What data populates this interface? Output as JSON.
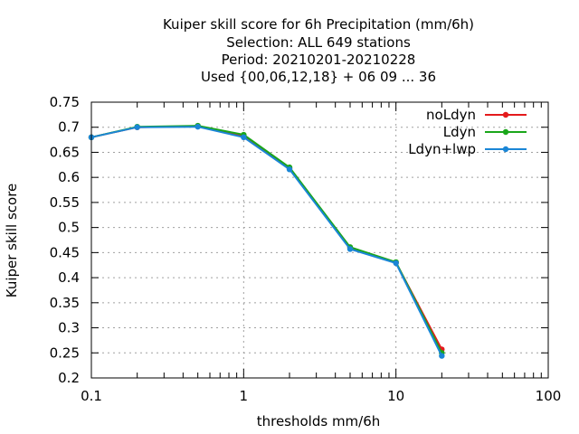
{
  "chart_data": {
    "type": "line",
    "title": [
      "Kuiper skill score  for 6h Precipitation (mm/6h)",
      "Selection: ALL    649 stations",
      "Period: 20210201-20210228",
      "Used {00,06,12,18} + 06 09 ... 36"
    ],
    "xlabel": "thresholds mm/6h",
    "ylabel": "Kuiper skill score",
    "xscale": "log",
    "xlim": [
      0.1,
      100
    ],
    "ylim": [
      0.2,
      0.75
    ],
    "xticks": [
      "0.1",
      "1",
      "10",
      "100"
    ],
    "yticks": [
      "0.2",
      "0.25",
      "0.3",
      "0.35",
      "0.4",
      "0.45",
      "0.5",
      "0.55",
      "0.6",
      "0.65",
      "0.7",
      "0.75"
    ],
    "grid": true,
    "legend_position": "top-right",
    "x": [
      0.1,
      0.2,
      0.5,
      1,
      2,
      5,
      10,
      20
    ],
    "series": [
      {
        "name": "noLdyn",
        "color": "#e41a1c",
        "values": [
          0.68,
          0.7,
          0.702,
          0.683,
          0.618,
          0.46,
          0.43,
          0.257
        ]
      },
      {
        "name": "Ldyn",
        "color": "#1aa61a",
        "values": [
          0.68,
          0.701,
          0.703,
          0.685,
          0.62,
          0.461,
          0.431,
          0.25
        ]
      },
      {
        "name": "Ldyn+lwp",
        "color": "#1a86d6",
        "values": [
          0.68,
          0.7,
          0.701,
          0.68,
          0.616,
          0.457,
          0.429,
          0.244
        ]
      }
    ]
  }
}
